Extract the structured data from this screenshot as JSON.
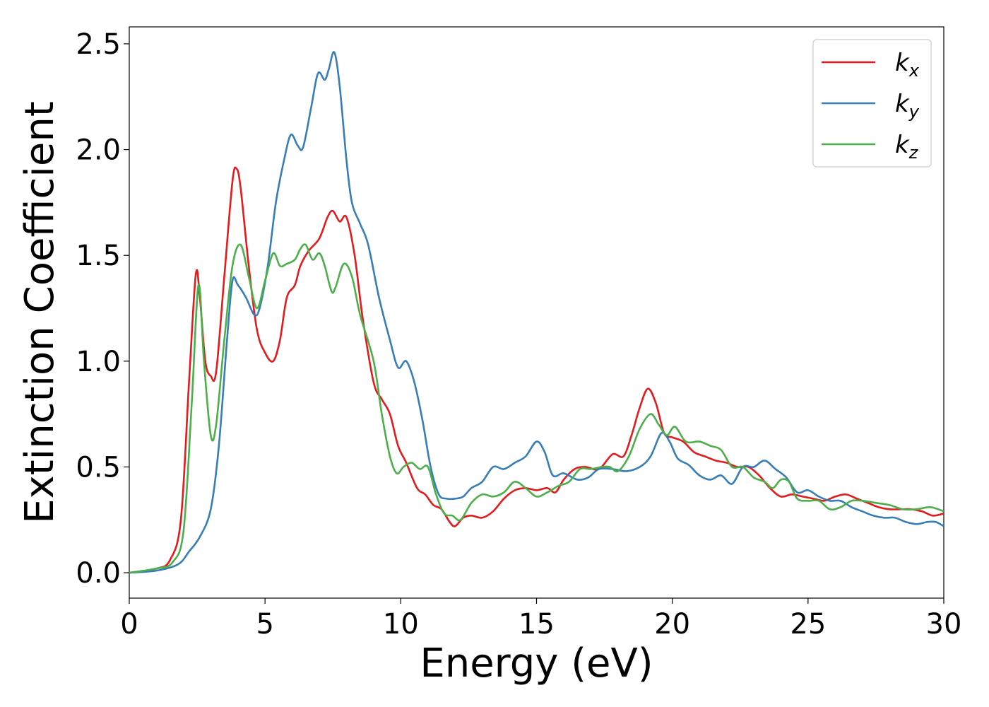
{
  "chart_data": {
    "type": "line",
    "title": "",
    "xlabel": "Energy (eV)",
    "ylabel": "Extinction Coefficient",
    "xlim": [
      0,
      30
    ],
    "ylim": [
      -0.12,
      2.58
    ],
    "xticks": [
      0,
      5,
      10,
      15,
      20,
      25,
      30
    ],
    "yticks": [
      0.0,
      0.5,
      1.0,
      1.5,
      2.0,
      2.5
    ],
    "xtick_labels": [
      "0",
      "5",
      "10",
      "15",
      "20",
      "25",
      "30"
    ],
    "ytick_labels": [
      "0.0",
      "0.5",
      "1.0",
      "1.5",
      "2.0",
      "2.5"
    ],
    "grid": false,
    "legend_position": "top-right",
    "series": [
      {
        "name": "k_x",
        "legend_base": "k",
        "legend_sub": "x",
        "color": "#e41a1c",
        "points": [
          [
            0,
            0
          ],
          [
            1,
            0.02
          ],
          [
            1.5,
            0.06
          ],
          [
            1.9,
            0.25
          ],
          [
            2.2,
            0.9
          ],
          [
            2.45,
            1.41
          ],
          [
            2.6,
            1.3
          ],
          [
            2.8,
            1.0
          ],
          [
            3.0,
            0.93
          ],
          [
            3.2,
            0.95
          ],
          [
            3.5,
            1.4
          ],
          [
            3.8,
            1.85
          ],
          [
            3.95,
            1.91
          ],
          [
            4.1,
            1.82
          ],
          [
            4.4,
            1.45
          ],
          [
            4.7,
            1.15
          ],
          [
            5.0,
            1.04
          ],
          [
            5.3,
            1.0
          ],
          [
            5.55,
            1.1
          ],
          [
            5.8,
            1.3
          ],
          [
            6.1,
            1.36
          ],
          [
            6.3,
            1.45
          ],
          [
            6.6,
            1.52
          ],
          [
            7.0,
            1.58
          ],
          [
            7.3,
            1.68
          ],
          [
            7.5,
            1.71
          ],
          [
            7.75,
            1.66
          ],
          [
            8.0,
            1.68
          ],
          [
            8.3,
            1.5
          ],
          [
            8.6,
            1.2
          ],
          [
            9.0,
            0.9
          ],
          [
            9.3,
            0.82
          ],
          [
            9.6,
            0.75
          ],
          [
            9.9,
            0.6
          ],
          [
            10.2,
            0.52
          ],
          [
            10.6,
            0.4
          ],
          [
            10.9,
            0.37
          ],
          [
            11.2,
            0.32
          ],
          [
            11.5,
            0.3
          ],
          [
            11.8,
            0.24
          ],
          [
            12.0,
            0.22
          ],
          [
            12.3,
            0.26
          ],
          [
            12.6,
            0.27
          ],
          [
            13.0,
            0.26
          ],
          [
            13.4,
            0.29
          ],
          [
            13.8,
            0.35
          ],
          [
            14.2,
            0.39
          ],
          [
            14.6,
            0.4
          ],
          [
            15.0,
            0.39
          ],
          [
            15.4,
            0.4
          ],
          [
            15.7,
            0.38
          ],
          [
            16.0,
            0.44
          ],
          [
            16.4,
            0.49
          ],
          [
            16.8,
            0.5
          ],
          [
            17.3,
            0.49
          ],
          [
            17.8,
            0.56
          ],
          [
            18.2,
            0.55
          ],
          [
            18.5,
            0.65
          ],
          [
            18.8,
            0.78
          ],
          [
            19.1,
            0.87
          ],
          [
            19.4,
            0.8
          ],
          [
            19.7,
            0.66
          ],
          [
            20.0,
            0.64
          ],
          [
            20.4,
            0.62
          ],
          [
            20.8,
            0.57
          ],
          [
            21.2,
            0.55
          ],
          [
            21.6,
            0.53
          ],
          [
            22.0,
            0.52
          ],
          [
            22.4,
            0.5
          ],
          [
            22.8,
            0.5
          ],
          [
            23.2,
            0.46
          ],
          [
            23.6,
            0.4
          ],
          [
            24.0,
            0.36
          ],
          [
            24.4,
            0.37
          ],
          [
            24.8,
            0.36
          ],
          [
            25.2,
            0.35
          ],
          [
            25.6,
            0.34
          ],
          [
            26.0,
            0.36
          ],
          [
            26.4,
            0.37
          ],
          [
            26.8,
            0.35
          ],
          [
            27.2,
            0.33
          ],
          [
            27.6,
            0.31
          ],
          [
            28.0,
            0.3
          ],
          [
            28.4,
            0.3
          ],
          [
            28.8,
            0.3
          ],
          [
            29.2,
            0.29
          ],
          [
            29.6,
            0.27
          ],
          [
            30.0,
            0.28
          ]
        ]
      },
      {
        "name": "k_y",
        "legend_base": "k",
        "legend_sub": "y",
        "color": "#377eb8",
        "points": [
          [
            0,
            0
          ],
          [
            1,
            0.01
          ],
          [
            1.8,
            0.04
          ],
          [
            2.2,
            0.1
          ],
          [
            2.6,
            0.17
          ],
          [
            3.0,
            0.3
          ],
          [
            3.3,
            0.6
          ],
          [
            3.6,
            1.1
          ],
          [
            3.8,
            1.38
          ],
          [
            4.0,
            1.36
          ],
          [
            4.3,
            1.3
          ],
          [
            4.6,
            1.22
          ],
          [
            4.8,
            1.25
          ],
          [
            5.1,
            1.45
          ],
          [
            5.4,
            1.75
          ],
          [
            5.7,
            1.95
          ],
          [
            5.95,
            2.07
          ],
          [
            6.2,
            2.02
          ],
          [
            6.4,
            2.01
          ],
          [
            6.7,
            2.2
          ],
          [
            6.95,
            2.36
          ],
          [
            7.2,
            2.33
          ],
          [
            7.35,
            2.38
          ],
          [
            7.55,
            2.46
          ],
          [
            7.75,
            2.3
          ],
          [
            8.0,
            1.95
          ],
          [
            8.2,
            1.75
          ],
          [
            8.5,
            1.65
          ],
          [
            8.8,
            1.55
          ],
          [
            9.2,
            1.3
          ],
          [
            9.6,
            1.1
          ],
          [
            9.9,
            0.97
          ],
          [
            10.2,
            1.0
          ],
          [
            10.5,
            0.9
          ],
          [
            10.8,
            0.72
          ],
          [
            11.1,
            0.5
          ],
          [
            11.4,
            0.37
          ],
          [
            11.7,
            0.35
          ],
          [
            12.0,
            0.35
          ],
          [
            12.3,
            0.36
          ],
          [
            12.6,
            0.4
          ],
          [
            13.0,
            0.43
          ],
          [
            13.4,
            0.5
          ],
          [
            13.8,
            0.49
          ],
          [
            14.2,
            0.52
          ],
          [
            14.6,
            0.55
          ],
          [
            15.0,
            0.62
          ],
          [
            15.3,
            0.57
          ],
          [
            15.6,
            0.46
          ],
          [
            16.0,
            0.47
          ],
          [
            16.5,
            0.44
          ],
          [
            16.9,
            0.45
          ],
          [
            17.3,
            0.49
          ],
          [
            17.8,
            0.49
          ],
          [
            18.3,
            0.48
          ],
          [
            18.8,
            0.5
          ],
          [
            19.2,
            0.55
          ],
          [
            19.6,
            0.66
          ],
          [
            19.9,
            0.62
          ],
          [
            20.2,
            0.54
          ],
          [
            20.6,
            0.51
          ],
          [
            21.0,
            0.46
          ],
          [
            21.4,
            0.44
          ],
          [
            21.8,
            0.46
          ],
          [
            22.2,
            0.42
          ],
          [
            22.6,
            0.5
          ],
          [
            23.0,
            0.5
          ],
          [
            23.4,
            0.53
          ],
          [
            23.8,
            0.49
          ],
          [
            24.2,
            0.45
          ],
          [
            24.6,
            0.38
          ],
          [
            25.0,
            0.39
          ],
          [
            25.4,
            0.36
          ],
          [
            25.8,
            0.34
          ],
          [
            26.2,
            0.34
          ],
          [
            26.6,
            0.31
          ],
          [
            27.0,
            0.29
          ],
          [
            27.4,
            0.27
          ],
          [
            27.8,
            0.26
          ],
          [
            28.2,
            0.26
          ],
          [
            28.6,
            0.24
          ],
          [
            29.0,
            0.23
          ],
          [
            29.4,
            0.24
          ],
          [
            29.7,
            0.24
          ],
          [
            30.0,
            0.22
          ]
        ]
      },
      {
        "name": "k_z",
        "legend_base": "k",
        "legend_sub": "z",
        "color": "#4daf4a",
        "points": [
          [
            0,
            0
          ],
          [
            1,
            0.02
          ],
          [
            1.6,
            0.05
          ],
          [
            2.0,
            0.2
          ],
          [
            2.3,
            0.8
          ],
          [
            2.55,
            1.36
          ],
          [
            2.75,
            1.0
          ],
          [
            3.0,
            0.65
          ],
          [
            3.2,
            0.7
          ],
          [
            3.5,
            1.1
          ],
          [
            3.8,
            1.45
          ],
          [
            4.1,
            1.55
          ],
          [
            4.4,
            1.4
          ],
          [
            4.7,
            1.25
          ],
          [
            5.0,
            1.38
          ],
          [
            5.3,
            1.51
          ],
          [
            5.55,
            1.45
          ],
          [
            5.8,
            1.46
          ],
          [
            6.1,
            1.48
          ],
          [
            6.3,
            1.53
          ],
          [
            6.5,
            1.55
          ],
          [
            6.75,
            1.48
          ],
          [
            7.0,
            1.51
          ],
          [
            7.2,
            1.45
          ],
          [
            7.45,
            1.33
          ],
          [
            7.6,
            1.35
          ],
          [
            7.9,
            1.46
          ],
          [
            8.2,
            1.4
          ],
          [
            8.5,
            1.22
          ],
          [
            9.0,
            1.0
          ],
          [
            9.3,
            0.75
          ],
          [
            9.6,
            0.55
          ],
          [
            9.85,
            0.47
          ],
          [
            10.1,
            0.5
          ],
          [
            10.4,
            0.52
          ],
          [
            10.7,
            0.49
          ],
          [
            11.0,
            0.5
          ],
          [
            11.3,
            0.37
          ],
          [
            11.6,
            0.28
          ],
          [
            11.9,
            0.27
          ],
          [
            12.2,
            0.25
          ],
          [
            12.6,
            0.33
          ],
          [
            13.0,
            0.37
          ],
          [
            13.4,
            0.36
          ],
          [
            13.8,
            0.38
          ],
          [
            14.2,
            0.43
          ],
          [
            14.6,
            0.4
          ],
          [
            15.0,
            0.36
          ],
          [
            15.4,
            0.38
          ],
          [
            15.8,
            0.41
          ],
          [
            16.2,
            0.43
          ],
          [
            16.6,
            0.49
          ],
          [
            17.0,
            0.49
          ],
          [
            17.4,
            0.5
          ],
          [
            17.7,
            0.5
          ],
          [
            18.0,
            0.48
          ],
          [
            18.4,
            0.55
          ],
          [
            18.8,
            0.68
          ],
          [
            19.2,
            0.75
          ],
          [
            19.5,
            0.7
          ],
          [
            19.8,
            0.65
          ],
          [
            20.1,
            0.69
          ],
          [
            20.5,
            0.62
          ],
          [
            21.0,
            0.62
          ],
          [
            21.4,
            0.6
          ],
          [
            21.8,
            0.58
          ],
          [
            22.2,
            0.5
          ],
          [
            22.6,
            0.5
          ],
          [
            23.0,
            0.45
          ],
          [
            23.4,
            0.43
          ],
          [
            23.7,
            0.4
          ],
          [
            24.0,
            0.44
          ],
          [
            24.3,
            0.43
          ],
          [
            24.6,
            0.35
          ],
          [
            25.0,
            0.34
          ],
          [
            25.4,
            0.34
          ],
          [
            25.8,
            0.3
          ],
          [
            26.2,
            0.31
          ],
          [
            26.6,
            0.34
          ],
          [
            27.0,
            0.34
          ],
          [
            27.5,
            0.33
          ],
          [
            28.0,
            0.32
          ],
          [
            28.5,
            0.3
          ],
          [
            29.0,
            0.3
          ],
          [
            29.5,
            0.31
          ],
          [
            30.0,
            0.29
          ]
        ]
      }
    ]
  }
}
